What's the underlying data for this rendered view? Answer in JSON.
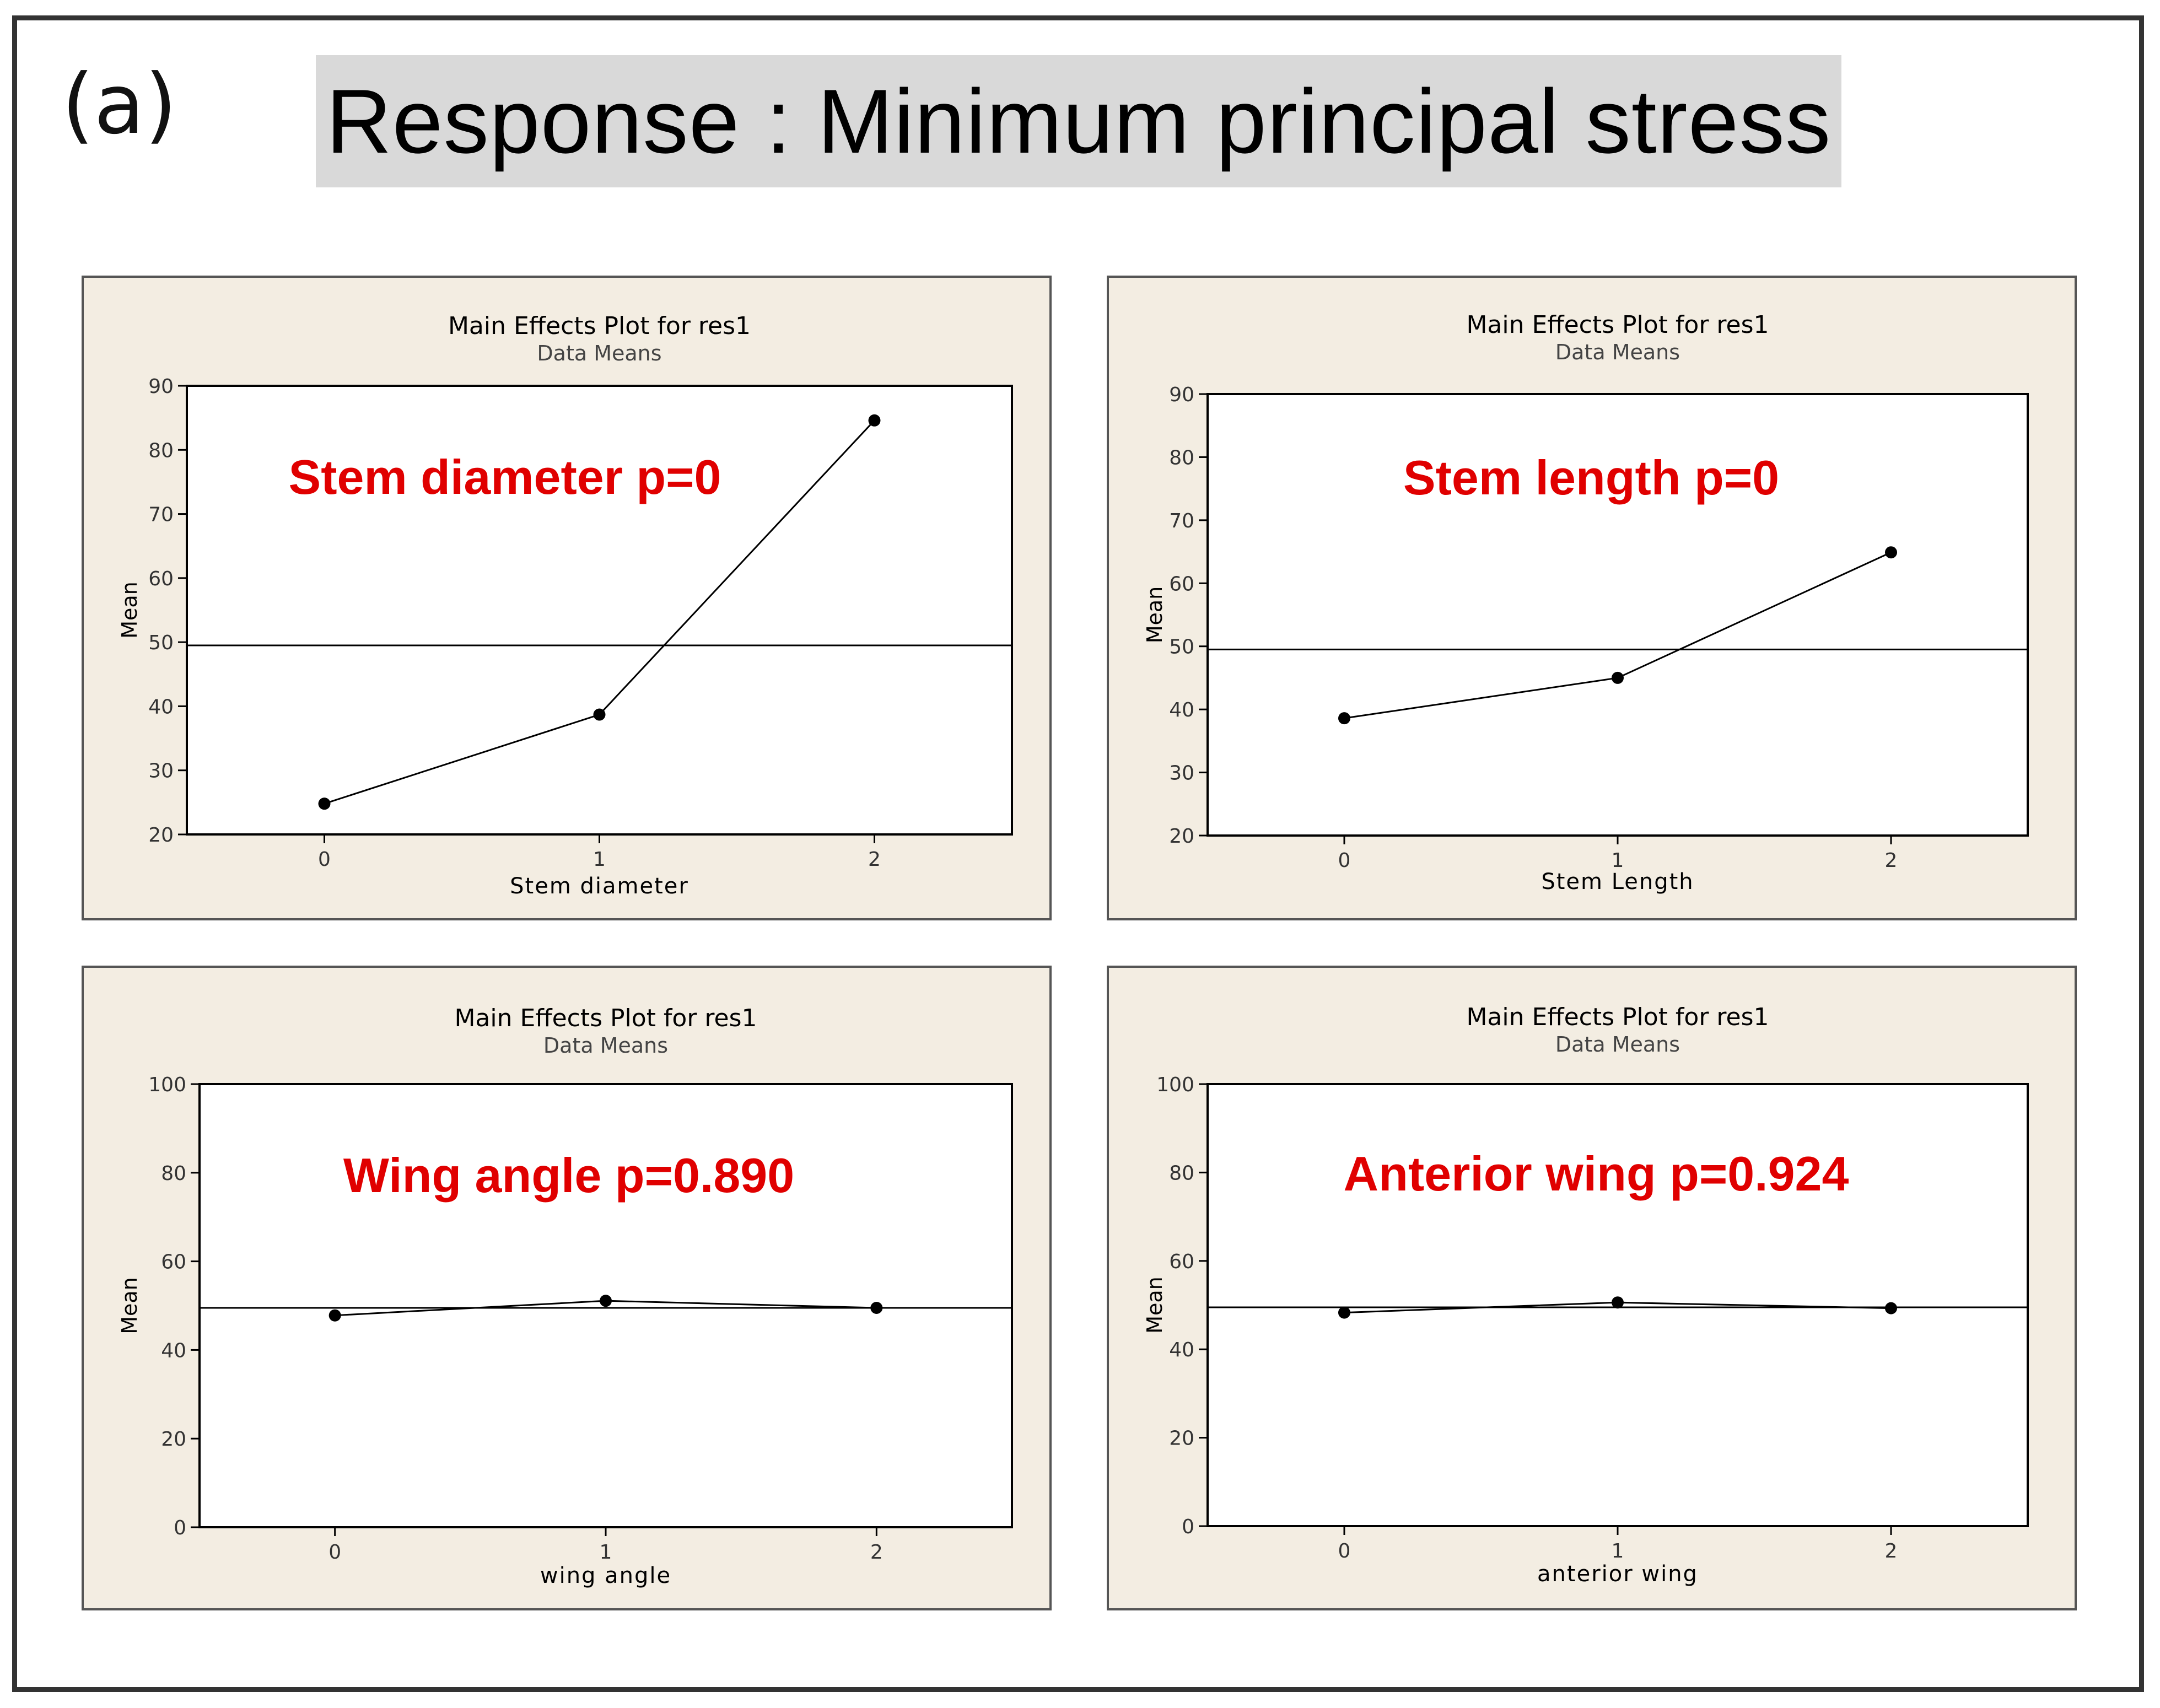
{
  "figure": {
    "panel_label": "(a)",
    "title": "Response : Minimum principal stress"
  },
  "colors": {
    "panel_background": "#f3ede2",
    "plot_background": "#ffffff",
    "annotation": "#e00000",
    "series": "#000000",
    "title_box": "#d9d9d9"
  },
  "chart_data": [
    {
      "type": "line",
      "title": "Main Effects Plot for res1",
      "subtitle": "Data Means",
      "xlabel": "Stem diameter",
      "ylabel": "Mean",
      "annotation": "Stem diameter p=0",
      "x": [
        0,
        1,
        2
      ],
      "x_ticks": [
        "0",
        "1",
        "2"
      ],
      "values": [
        24.8,
        38.7,
        84.6
      ],
      "reference_line": 49.5,
      "ylim": [
        20,
        90
      ],
      "y_ticks": [
        20,
        30,
        40,
        50,
        60,
        70,
        80,
        90
      ],
      "grid": false
    },
    {
      "type": "line",
      "title": "Main Effects Plot for res1",
      "subtitle": "Data Means",
      "xlabel": "Stem Length",
      "ylabel": "Mean",
      "annotation": "Stem length p=0",
      "x": [
        0,
        1,
        2
      ],
      "x_ticks": [
        "0",
        "1",
        "2"
      ],
      "values": [
        38.6,
        45.0,
        64.9
      ],
      "reference_line": 49.5,
      "ylim": [
        20,
        90
      ],
      "y_ticks": [
        20,
        30,
        40,
        50,
        60,
        70,
        80,
        90
      ],
      "grid": false
    },
    {
      "type": "line",
      "title": "Main Effects Plot for res1",
      "subtitle": "Data Means",
      "xlabel": "wing angle",
      "ylabel": "Mean",
      "annotation": "Wing angle p=0.890",
      "x": [
        0,
        1,
        2
      ],
      "x_ticks": [
        "0",
        "1",
        "2"
      ],
      "values": [
        47.8,
        51.1,
        49.5
      ],
      "reference_line": 49.5,
      "ylim": [
        0,
        100
      ],
      "y_ticks": [
        0,
        20,
        40,
        60,
        80,
        100
      ],
      "grid": false
    },
    {
      "type": "line",
      "title": "Main Effects Plot for res1",
      "subtitle": "Data Means",
      "xlabel": "anterior wing",
      "ylabel": "Mean",
      "annotation": "Anterior wing p=0.924",
      "x": [
        0,
        1,
        2
      ],
      "x_ticks": [
        "0",
        "1",
        "2"
      ],
      "values": [
        48.3,
        50.6,
        49.3
      ],
      "reference_line": 49.5,
      "ylim": [
        0,
        100
      ],
      "y_ticks": [
        0,
        20,
        40,
        60,
        80,
        100
      ],
      "grid": false
    }
  ]
}
